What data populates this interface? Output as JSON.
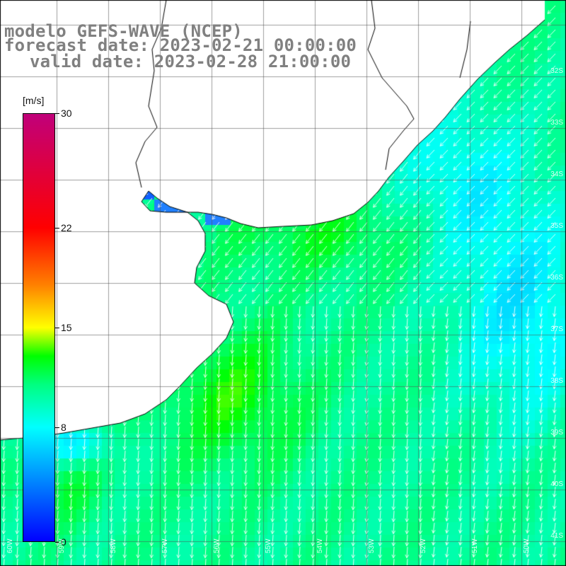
{
  "title": {
    "line1": "modelo GEFS-WAVE (NCEP)",
    "line2": "forecast date: 2023-02-21 00:00:00",
    "line3": "valid date: 2023-02-28 21:00:00"
  },
  "colorbar": {
    "unit": "[m/s]",
    "min": 0,
    "max": 30,
    "ticks": [
      {
        "value": 30,
        "label": "30"
      },
      {
        "value": 22,
        "label": "22"
      },
      {
        "value": 15,
        "label": "15"
      },
      {
        "value": 8,
        "label": "8"
      },
      {
        "value": 0,
        "label": "0"
      }
    ],
    "stops": [
      {
        "value": 0,
        "color": "#0000ff"
      },
      {
        "value": 8,
        "color": "#00ffff"
      },
      {
        "value": 11,
        "color": "#00ff80"
      },
      {
        "value": 13,
        "color": "#00ff00"
      },
      {
        "value": 15,
        "color": "#ffff00"
      },
      {
        "value": 18,
        "color": "#ff8000"
      },
      {
        "value": 22,
        "color": "#ff0000"
      },
      {
        "value": 30,
        "color": "#c0007a"
      }
    ]
  },
  "lat_labels": [
    "32S",
    "33S",
    "34S",
    "35S",
    "36S",
    "37S",
    "38S",
    "39S",
    "40S",
    "41S"
  ],
  "lon_labels": [
    "60W",
    "59W",
    "58W",
    "57W",
    "56W",
    "55W",
    "54W",
    "53W",
    "52W",
    "51W",
    "50W"
  ],
  "field_description": {
    "wind_direction": "predominantly from north/northeast toward south-southwest",
    "speed_range_ms": [
      3,
      13
    ]
  }
}
